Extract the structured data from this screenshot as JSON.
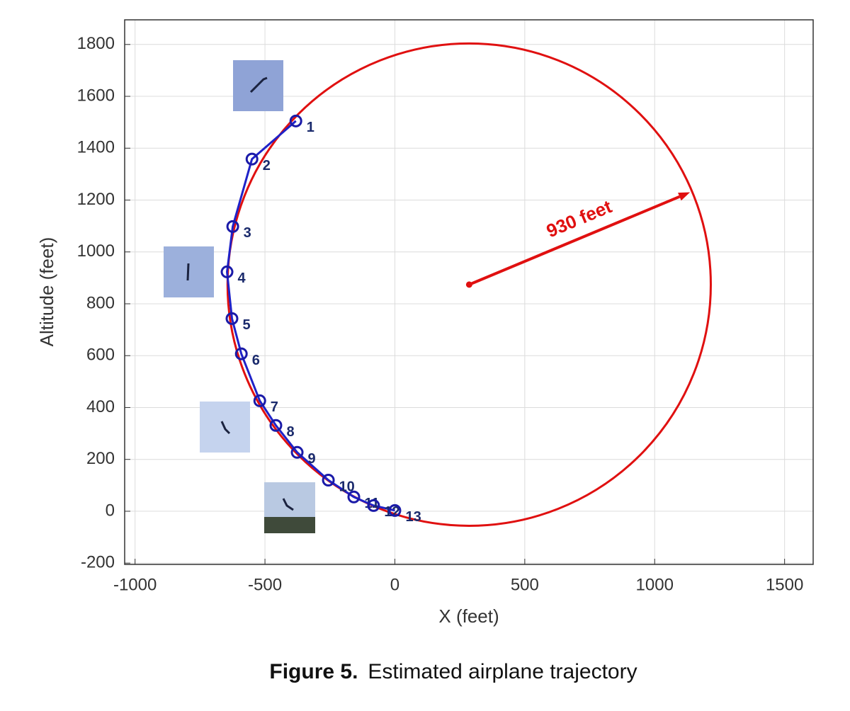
{
  "chart_data": {
    "type": "scatter",
    "xlabel": "X (feet)",
    "ylabel": "Altitude (feet)",
    "xlim": [
      -1040,
      1610
    ],
    "ylim": [
      -205,
      1895
    ],
    "xticks": [
      -1000,
      -500,
      0,
      500,
      1000,
      1500
    ],
    "yticks": [
      -200,
      0,
      200,
      400,
      600,
      800,
      1000,
      1200,
      1400,
      1600,
      1800
    ],
    "grid": true,
    "series": [
      {
        "color": "#1f22c8",
        "x": [
          -381,
          -550,
          -624,
          -646,
          -627,
          -591,
          -520,
          -458,
          -376,
          -256,
          -158,
          -82,
          0
        ],
        "values": [
          1505,
          1358,
          1098,
          923,
          743,
          607,
          426,
          331,
          227,
          120,
          55,
          22,
          3
        ],
        "point_labels": [
          "1",
          "2",
          "3",
          "4",
          "5",
          "6",
          "7",
          "8",
          "9",
          "10",
          "11",
          "12",
          "13"
        ]
      }
    ],
    "circle": {
      "center": [
        286,
        874
      ],
      "radius": 930,
      "color": "#e01010"
    },
    "arrow_tip": [
      1136,
      1230
    ],
    "annotation": "930 feet"
  },
  "caption": {
    "label": "Figure 5.",
    "text": "Estimated airplane trajectory"
  }
}
